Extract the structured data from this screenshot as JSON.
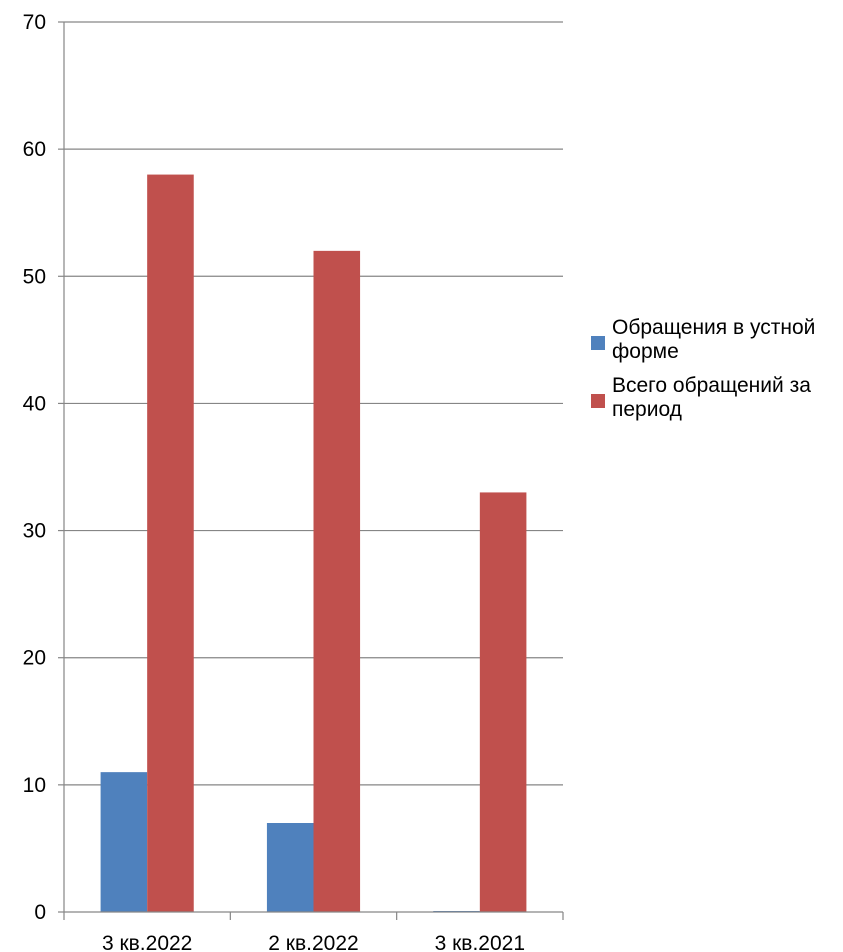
{
  "chart_data": {
    "type": "bar",
    "categories": [
      "3 кв.2022",
      "2 кв.2022",
      "3 кв.2021"
    ],
    "series": [
      {
        "name": "Обращения в устной форме",
        "legend_lines": [
          "Обращения в устной",
          "форме"
        ],
        "values": [
          11,
          7,
          0
        ],
        "color": "#4F81BD"
      },
      {
        "name": "Всего обращений за период",
        "legend_lines": [
          "Всего обращений за",
          "период"
        ],
        "values": [
          58,
          52,
          33
        ],
        "color": "#C0504D"
      }
    ],
    "ylim": [
      0,
      70
    ],
    "yticks": [
      0,
      10,
      20,
      30,
      40,
      50,
      60,
      70
    ],
    "ytick_labels": [
      "0",
      "10",
      "20",
      "30",
      "40",
      "50",
      "60",
      "70"
    ],
    "grid": true,
    "legend_position": "right",
    "title": "",
    "xlabel": "",
    "ylabel": ""
  }
}
